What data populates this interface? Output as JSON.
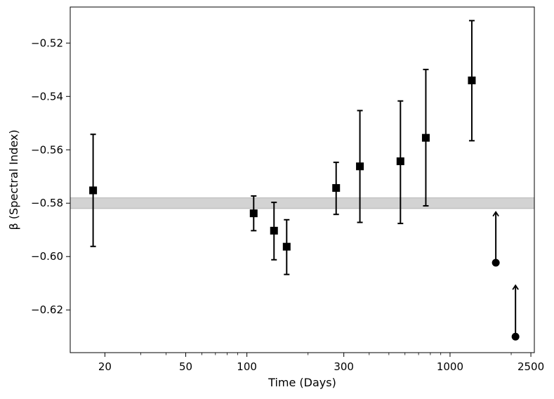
{
  "chart_data": {
    "type": "scatter",
    "xlabel": "Time (Days)",
    "ylabel": "β (Spectral Index)",
    "x_scale": "log",
    "xlim": [
      13.5,
      2600
    ],
    "ylim": [
      -0.636,
      -0.5065
    ],
    "x_ticks": [
      20,
      50,
      100,
      300,
      1000,
      2500
    ],
    "x_tick_labels": [
      "20",
      "50",
      "100",
      "300",
      "1000",
      "2500"
    ],
    "y_ticks": [
      -0.62,
      -0.6,
      -0.58,
      -0.56,
      -0.54,
      -0.52
    ],
    "y_tick_labels": [
      "−0.62",
      "−0.60",
      "−0.58",
      "−0.56",
      "−0.54",
      "−0.52"
    ],
    "band": {
      "y_low": -0.582,
      "y_high": -0.578,
      "color": "#d3d3d3"
    },
    "series": [
      {
        "marker": "square",
        "color": "#000000",
        "points": [
          {
            "x": 17.5,
            "y": -0.5752,
            "y_low": -0.5962,
            "y_high": -0.5542
          },
          {
            "x": 108,
            "y": -0.5838,
            "y_low": -0.5903,
            "y_high": -0.5773
          },
          {
            "x": 136,
            "y": -0.5903,
            "y_low": -0.6012,
            "y_high": -0.5797
          },
          {
            "x": 157,
            "y": -0.5963,
            "y_low": -0.6067,
            "y_high": -0.5862
          },
          {
            "x": 275,
            "y": -0.5743,
            "y_low": -0.5842,
            "y_high": -0.5647
          },
          {
            "x": 360,
            "y": -0.5662,
            "y_low": -0.5872,
            "y_high": -0.5453
          },
          {
            "x": 570,
            "y": -0.5643,
            "y_low": -0.5876,
            "y_high": -0.5417
          },
          {
            "x": 760,
            "y": -0.5555,
            "y_low": -0.581,
            "y_high": -0.5299
          },
          {
            "x": 1280,
            "y": -0.534,
            "y_low": -0.5566,
            "y_high": -0.5116
          }
        ]
      },
      {
        "marker": "circle",
        "color": "#000000",
        "lower_limit": true,
        "points": [
          {
            "x": 1680,
            "y": -0.6023,
            "arrow_to": -0.5833
          },
          {
            "x": 2100,
            "y": -0.63,
            "arrow_to": -0.6108
          }
        ]
      }
    ],
    "grid": false,
    "legend": false
  }
}
